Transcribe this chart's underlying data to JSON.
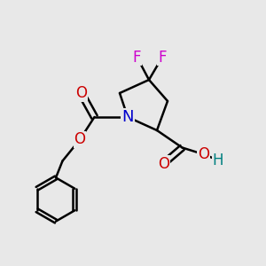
{
  "background_color": "#e8e8e8",
  "atom_colors": {
    "N": "#0000cc",
    "O": "#cc0000",
    "F": "#cc00cc",
    "H": "#008080"
  },
  "bond_color": "#000000",
  "bond_width": 1.8,
  "font_size_atom": 12
}
